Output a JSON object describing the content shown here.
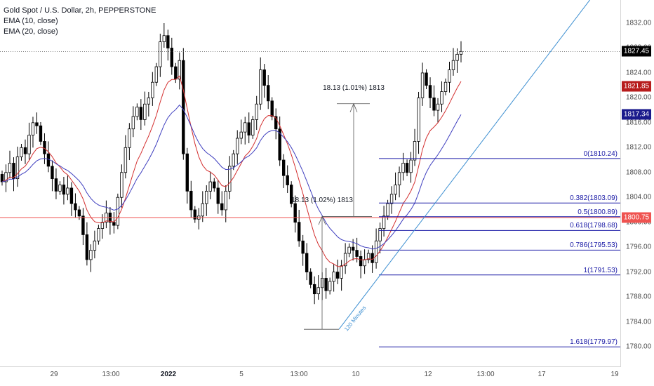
{
  "legend": {
    "symbol_line": "Gold Spot / U.S. Dollar, 2h, PEPPERSTONE",
    "ema1": "EMA (10, close)",
    "ema2": "EMA (20, close)"
  },
  "price_tags": {
    "last": {
      "value": 1827.45,
      "label": "1827.45",
      "color": "#000000"
    },
    "ema10": {
      "value": 1821.85,
      "label": "1821.85",
      "color": "#b71c1c"
    },
    "ema20": {
      "value": 1817.34,
      "label": "1817.34",
      "color": "#1a1a8c"
    },
    "hline": {
      "value": 1800.75,
      "label": "1800.75",
      "color": "#ef5350"
    }
  },
  "annotations": {
    "upper": "18.13 (1.01%) 1813",
    "lower": "18.13 (1.02%) 1813",
    "trend": "120 Minutes"
  },
  "chart_data": {
    "type": "candlestick",
    "title": "Gold Spot / U.S. Dollar, 2h, PEPPERSTONE",
    "y_ticks": [
      1780,
      1784,
      1788,
      1792,
      1796,
      1800,
      1804,
      1808,
      1812,
      1816,
      1820,
      1824,
      1828,
      1832
    ],
    "y_tick_labels": [
      "1780.00",
      "1784.00",
      "1788.00",
      "1792.00",
      "1796.00",
      "1800.00",
      "1804.00",
      "1808.00",
      "1812.00",
      "1816.00",
      "1820.00",
      "1824.00",
      "1828.00",
      "1832.00"
    ],
    "x_ticks": [
      {
        "label": "29",
        "bold": false
      },
      {
        "label": "13:00",
        "bold": false
      },
      {
        "label": "2022",
        "bold": true
      },
      {
        "label": "5",
        "bold": false
      },
      {
        "label": "13:00",
        "bold": false
      },
      {
        "label": "10",
        "bold": false
      },
      {
        "label": "12",
        "bold": false
      },
      {
        "label": "13:00",
        "bold": false
      },
      {
        "label": "17",
        "bold": false
      },
      {
        "label": "19",
        "bold": false
      }
    ],
    "closes": [
      1806.5,
      1808,
      1809.5,
      1807,
      1810.5,
      1812,
      1811,
      1814,
      1816,
      1815.5,
      1813,
      1811,
      1809,
      1807,
      1805,
      1806,
      1804.5,
      1805.5,
      1803,
      1802,
      1801,
      1798,
      1794,
      1795.5,
      1797,
      1799,
      1800,
      1801.5,
      1800,
      1799.5,
      1804,
      1808,
      1812,
      1815,
      1817,
      1818.5,
      1816.5,
      1819,
      1820,
      1822.5,
      1825,
      1829,
      1830,
      1828,
      1825,
      1823,
      1826,
      1811,
      1805,
      1802,
      1800.5,
      1801,
      1803,
      1805,
      1806.5,
      1805.5,
      1803,
      1802,
      1805,
      1809,
      1811,
      1813.5,
      1814.5,
      1816,
      1814,
      1816.5,
      1819,
      1824.5,
      1822,
      1819.5,
      1817,
      1815,
      1810,
      1807.5,
      1806,
      1803,
      1800,
      1797,
      1795,
      1792,
      1790,
      1788.5,
      1789.5,
      1791,
      1789,
      1790.5,
      1792,
      1791,
      1793,
      1795,
      1796,
      1795.5,
      1794.5,
      1793,
      1794,
      1795,
      1793.5,
      1797,
      1799,
      1801,
      1803,
      1804.5,
      1806,
      1808,
      1809.5,
      1808,
      1810,
      1813,
      1820,
      1824,
      1822,
      1820,
      1818,
      1819,
      1821,
      1822.5,
      1824.5,
      1826,
      1827,
      1827.45
    ],
    "annotation_values": {
      "move_points": 18.13,
      "move_pct_upper": 1.01,
      "move_pct_lower": 1.02,
      "target_price": 1813
    },
    "ema10_last": 1821.85,
    "ema20_last": 1817.34,
    "horizontal_level": 1800.75,
    "last_price": 1827.45,
    "fibonacci": [
      {
        "label": "0(1810.24)",
        "price": 1810.24
      },
      {
        "label": "0.382(1803.09)",
        "price": 1803.09
      },
      {
        "label": "0.5(1800.89)",
        "price": 1800.89
      },
      {
        "label": "0.618(1798.68)",
        "price": 1798.68
      },
      {
        "label": "0.786(1795.53)",
        "price": 1795.53
      },
      {
        "label": "1(1791.53)",
        "price": 1791.53
      },
      {
        "label": "1.618(1779.97)",
        "price": 1779.97
      }
    ],
    "colors": {
      "up": "#ffffff",
      "down": "#000000",
      "ema10": "#d32f2f",
      "ema20": "#3f3fbf",
      "fib": "#1a1aa6",
      "trend": "#3d8fd1",
      "hline": "#ef5350"
    }
  }
}
